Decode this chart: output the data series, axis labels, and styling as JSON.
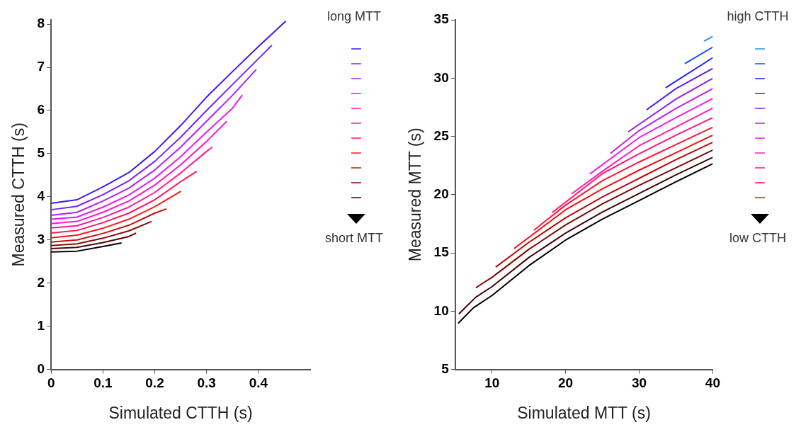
{
  "chart_data": [
    {
      "type": "line",
      "xlabel": "Simulated CTTH (s)",
      "ylabel": "Measured CTTH (s)",
      "xlim": [
        0,
        0.5
      ],
      "ylim": [
        0,
        8.1
      ],
      "xticks": [
        0,
        0.1,
        0.2,
        0.3,
        0.4
      ],
      "yticks": [
        0,
        1,
        2,
        3,
        4,
        5,
        6,
        7,
        8
      ],
      "marker": "none",
      "annotations": [
        "long MTT",
        "short MTT"
      ],
      "series": [
        {
          "color": "#3b1cf0",
          "x": [
            0,
            0.05,
            0.1,
            0.15,
            0.2,
            0.25,
            0.3,
            0.35,
            0.4,
            0.453
          ],
          "values": [
            3.85,
            3.93,
            4.23,
            4.56,
            5.05,
            5.65,
            6.31,
            6.9,
            7.48,
            8.07
          ]
        },
        {
          "color": "#7a22f5",
          "x": [
            0,
            0.05,
            0.1,
            0.15,
            0.2,
            0.25,
            0.3,
            0.35,
            0.4,
            0.426
          ],
          "values": [
            3.7,
            3.78,
            4.05,
            4.37,
            4.82,
            5.38,
            6.0,
            6.6,
            7.2,
            7.51
          ]
        },
        {
          "color": "#b020f0",
          "x": [
            0,
            0.05,
            0.1,
            0.15,
            0.2,
            0.25,
            0.3,
            0.35,
            0.396
          ],
          "values": [
            3.57,
            3.64,
            3.9,
            4.2,
            4.62,
            5.15,
            5.75,
            6.35,
            6.95
          ]
        },
        {
          "color": "#e31ee6",
          "x": [
            0,
            0.05,
            0.1,
            0.15,
            0.2,
            0.25,
            0.3,
            0.35,
            0.369
          ],
          "values": [
            3.48,
            3.53,
            3.76,
            4.04,
            4.43,
            4.93,
            5.5,
            6.05,
            6.36
          ]
        },
        {
          "color": "#ff14d0",
          "x": [
            0,
            0.05,
            0.1,
            0.15,
            0.2,
            0.25,
            0.3,
            0.339
          ],
          "values": [
            3.38,
            3.43,
            3.64,
            3.9,
            4.27,
            4.74,
            5.28,
            5.75
          ]
        },
        {
          "color": "#ff1a9a",
          "x": [
            0,
            0.05,
            0.1,
            0.15,
            0.2,
            0.25,
            0.3,
            0.311
          ],
          "values": [
            3.28,
            3.33,
            3.52,
            3.76,
            4.1,
            4.55,
            5.05,
            5.15
          ]
        },
        {
          "color": "#ff1460",
          "x": [
            0,
            0.05,
            0.1,
            0.15,
            0.2,
            0.25,
            0.281
          ],
          "values": [
            3.16,
            3.22,
            3.4,
            3.62,
            3.93,
            4.35,
            4.59
          ]
        },
        {
          "color": "#ff1a1a",
          "x": [
            0,
            0.05,
            0.1,
            0.15,
            0.2,
            0.251
          ],
          "values": [
            3.05,
            3.11,
            3.27,
            3.48,
            3.77,
            4.13
          ]
        },
        {
          "color": "#c8100c",
          "x": [
            0,
            0.05,
            0.1,
            0.15,
            0.2,
            0.223
          ],
          "values": [
            2.95,
            3.0,
            3.15,
            3.34,
            3.62,
            3.72
          ]
        },
        {
          "color": "#8c0a08",
          "x": [
            0,
            0.05,
            0.1,
            0.15,
            0.194
          ],
          "values": [
            2.87,
            2.91,
            3.04,
            3.21,
            3.43
          ]
        },
        {
          "color": "#500505",
          "x": [
            0,
            0.05,
            0.1,
            0.15,
            0.164
          ],
          "values": [
            2.8,
            2.83,
            2.94,
            3.08,
            3.16
          ]
        },
        {
          "color": "#000000",
          "x": [
            0,
            0.05,
            0.1,
            0.136
          ],
          "values": [
            2.72,
            2.74,
            2.85,
            2.93
          ]
        }
      ]
    },
    {
      "type": "line",
      "xlabel": "Simulated MTT (s)",
      "ylabel": "Measured MTT (s)",
      "xlim": [
        5,
        40
      ],
      "ylim": [
        5,
        35
      ],
      "xticks": [
        10,
        20,
        30,
        40
      ],
      "yticks": [
        5,
        10,
        15,
        20,
        25,
        30,
        35
      ],
      "marker": "none",
      "annotations": [
        "high CTTH",
        "low CTTH"
      ],
      "series": [
        {
          "color": "#1e90ff",
          "x": [
            38.8,
            40
          ],
          "values": [
            33.17,
            33.58
          ]
        },
        {
          "color": "#0a50ff",
          "x": [
            36.2,
            40
          ],
          "values": [
            31.24,
            32.66
          ]
        },
        {
          "color": "#2020ff",
          "x": [
            33.6,
            40
          ],
          "values": [
            29.17,
            31.75
          ]
        },
        {
          "color": "#5a1ef5",
          "x": [
            31.0,
            35,
            40
          ],
          "values": [
            27.27,
            29.1,
            30.83
          ]
        },
        {
          "color": "#9020f0",
          "x": [
            28.5,
            35,
            40
          ],
          "values": [
            25.38,
            28.2,
            29.98
          ]
        },
        {
          "color": "#c81ee8",
          "x": [
            26.1,
            30,
            35,
            40
          ],
          "values": [
            23.54,
            25.5,
            27.4,
            29.1
          ]
        },
        {
          "color": "#f01ee6",
          "x": [
            23.3,
            30,
            35,
            40
          ],
          "values": [
            21.77,
            24.9,
            26.6,
            28.25
          ]
        },
        {
          "color": "#ff1ab4",
          "x": [
            20.8,
            25,
            30,
            35,
            40
          ],
          "values": [
            20.06,
            22.0,
            24.2,
            25.8,
            27.42
          ]
        },
        {
          "color": "#ff1478",
          "x": [
            18.2,
            25,
            30,
            35,
            40
          ],
          "values": [
            18.47,
            21.8,
            23.5,
            25.1,
            26.6
          ]
        },
        {
          "color": "#ff1438",
          "x": [
            15.7,
            20,
            25,
            30,
            35,
            40
          ],
          "values": [
            16.95,
            19.1,
            21.2,
            22.8,
            24.3,
            25.79
          ]
        },
        {
          "color": "#f01010",
          "x": [
            13.0,
            20,
            25,
            30,
            35,
            40
          ],
          "values": [
            15.37,
            18.7,
            20.5,
            22.1,
            23.6,
            25.1
          ]
        },
        {
          "color": "#b40c0a",
          "x": [
            10.5,
            15,
            20,
            25,
            30,
            35,
            40
          ],
          "values": [
            13.78,
            15.9,
            18.0,
            19.8,
            21.4,
            23.0,
            24.49
          ]
        },
        {
          "color": "#780808",
          "x": [
            7.8,
            10,
            15,
            20,
            25,
            30,
            35,
            40
          ],
          "values": [
            12.01,
            12.9,
            15.3,
            17.4,
            19.2,
            20.8,
            22.3,
            23.82
          ]
        },
        {
          "color": "#400404",
          "x": [
            5.5,
            7.8,
            10,
            15,
            20,
            25,
            30,
            35,
            40
          ],
          "values": [
            9.76,
            11.2,
            12.1,
            14.6,
            16.7,
            18.5,
            20.1,
            21.7,
            23.2
          ]
        },
        {
          "color": "#000000",
          "x": [
            5.4,
            7.5,
            10,
            15,
            20,
            25,
            30,
            35,
            40
          ],
          "values": [
            8.96,
            10.3,
            11.34,
            13.9,
            16.1,
            17.9,
            19.5,
            21.1,
            22.65
          ]
        }
      ]
    }
  ]
}
